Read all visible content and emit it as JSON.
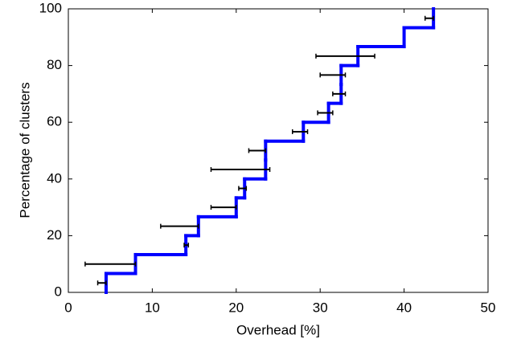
{
  "chart_data": {
    "type": "step",
    "xlabel": "Overhead [%]",
    "ylabel": "Percentage of clusters",
    "xlim": [
      0,
      50
    ],
    "ylim": [
      0,
      100
    ],
    "xticks": [
      0,
      10,
      20,
      30,
      40,
      50
    ],
    "yticks": [
      0,
      20,
      40,
      60,
      80,
      100
    ],
    "series": [
      {
        "color": "#0000ff",
        "x": [
          4.5,
          8,
          14,
          15.5,
          20,
          21,
          23.5,
          23.5,
          28,
          31,
          32.5,
          32.5,
          34.5,
          40,
          43.5
        ],
        "values": [
          6.67,
          13.33,
          20,
          26.67,
          33.33,
          40,
          46.67,
          53.33,
          60,
          66.67,
          73.33,
          80,
          86.67,
          93.33,
          100
        ]
      }
    ],
    "error_bars": {
      "color": "#000000",
      "y": [
        3.33,
        10,
        16.67,
        23.33,
        30,
        36.67,
        43.33,
        50,
        56.67,
        63.33,
        70,
        76.67,
        83.33,
        96.67
      ],
      "low": [
        3.5,
        2,
        13.8,
        11,
        17,
        20.3,
        17,
        21.5,
        26.7,
        29.7,
        31.5,
        30,
        29.5,
        42.5
      ],
      "high": [
        4.5,
        8,
        14.3,
        15.5,
        20,
        21.2,
        24,
        23.5,
        28.5,
        31.5,
        33,
        33,
        36.5,
        43.5
      ]
    }
  }
}
